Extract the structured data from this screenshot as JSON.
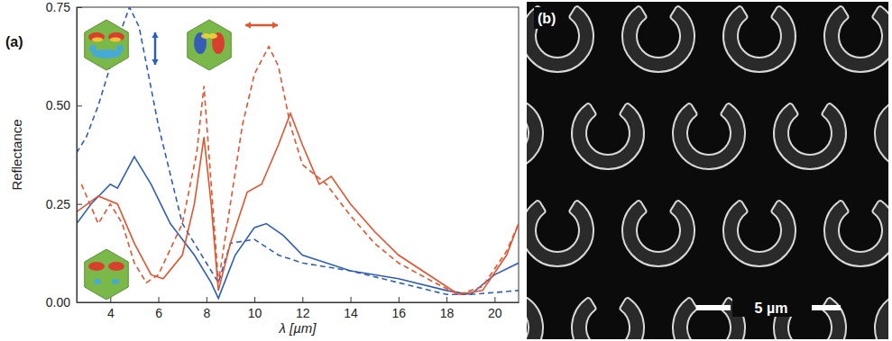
{
  "chart_data": {
    "type": "line",
    "panel_label": "(a)",
    "x_label": "λ [µm]",
    "y_label": "Reflectance",
    "xlim": [
      2.6,
      21
    ],
    "ylim": [
      0,
      0.75
    ],
    "xticks": [
      4,
      6,
      8,
      10,
      12,
      14,
      16,
      18,
      20
    ],
    "yticks": [
      {
        "value": 0,
        "label": "0.00"
      },
      {
        "value": 0.25,
        "label": "0.25"
      },
      {
        "value": 0.5,
        "label": "0.50"
      },
      {
        "value": 0.75,
        "label": "0.75"
      }
    ],
    "series": [
      {
        "color": "#2d5fb8",
        "line_style": "solid",
        "x": [
          2.6,
          3.2,
          4.0,
          4.3,
          5.0,
          5.7,
          6.5,
          7.5,
          8.2,
          8.5,
          9.2,
          10.0,
          10.5,
          11.2,
          12.0,
          13.0,
          14.0,
          16.0,
          18.0,
          19.0,
          20.0,
          21.0
        ],
        "values": [
          0.2,
          0.25,
          0.3,
          0.29,
          0.37,
          0.3,
          0.2,
          0.12,
          0.05,
          0.01,
          0.12,
          0.19,
          0.2,
          0.17,
          0.12,
          0.1,
          0.08,
          0.06,
          0.03,
          0.02,
          0.07,
          0.1
        ]
      },
      {
        "color": "#2d5fb8",
        "line_style": "dashed",
        "x": [
          2.6,
          3.0,
          3.5,
          4.0,
          4.5,
          4.8,
          5.2,
          6.0,
          7.0,
          8.0,
          8.5,
          9.0,
          10.0,
          11.0,
          12.0,
          14.0,
          16.0,
          18.0,
          19.0,
          21.0
        ],
        "values": [
          0.38,
          0.42,
          0.5,
          0.6,
          0.7,
          0.75,
          0.7,
          0.45,
          0.2,
          0.1,
          0.05,
          0.15,
          0.16,
          0.12,
          0.1,
          0.08,
          0.05,
          0.02,
          0.02,
          0.03
        ]
      },
      {
        "color": "#e4532c",
        "line_style": "solid",
        "x": [
          2.6,
          3.5,
          4.3,
          5.0,
          5.7,
          6.2,
          7.0,
          7.5,
          7.9,
          8.2,
          8.5,
          9.0,
          9.7,
          10.3,
          11.0,
          11.5,
          12.0,
          12.7,
          13.2,
          14.0,
          15.0,
          16.0,
          17.5,
          18.5,
          19.5,
          20.5,
          21.0
        ],
        "values": [
          0.23,
          0.27,
          0.25,
          0.15,
          0.07,
          0.06,
          0.12,
          0.25,
          0.42,
          0.25,
          0.03,
          0.15,
          0.28,
          0.3,
          0.4,
          0.48,
          0.4,
          0.3,
          0.32,
          0.25,
          0.18,
          0.12,
          0.06,
          0.02,
          0.03,
          0.12,
          0.2
        ]
      },
      {
        "color": "#e4532c",
        "line_style": "dashed",
        "x": [
          2.8,
          3.5,
          4.0,
          4.5,
          5.0,
          5.5,
          6.0,
          7.0,
          7.6,
          7.9,
          8.2,
          8.5,
          9.0,
          9.5,
          10.0,
          10.6,
          11.0,
          11.5,
          12.0,
          13.0,
          14.0,
          15.0,
          16.0,
          17.5,
          18.5,
          19.5,
          20.5,
          21.0
        ],
        "values": [
          0.3,
          0.2,
          0.25,
          0.2,
          0.1,
          0.05,
          0.07,
          0.2,
          0.38,
          0.55,
          0.3,
          0.05,
          0.25,
          0.45,
          0.58,
          0.65,
          0.6,
          0.45,
          0.35,
          0.3,
          0.22,
          0.15,
          0.1,
          0.05,
          0.02,
          0.04,
          0.13,
          0.2
        ]
      }
    ]
  },
  "micrograph": {
    "label": "(b)",
    "scale_bar": "5 µm"
  }
}
